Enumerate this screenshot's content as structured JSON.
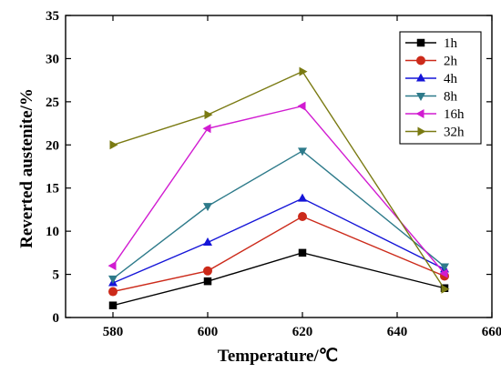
{
  "chart_data": {
    "type": "line",
    "xlabel": "Temperature/℃",
    "ylabel": "Reverted austenite/%",
    "xlim": [
      570,
      660
    ],
    "ylim": [
      0,
      35
    ],
    "xticks": [
      580,
      600,
      620,
      640,
      660
    ],
    "yticks": [
      0,
      5,
      10,
      15,
      20,
      25,
      30,
      35
    ],
    "legend_position": "top-right",
    "grid": false,
    "series": [
      {
        "name": "1h",
        "color": "#000000",
        "marker": "square",
        "x": [
          580,
          600,
          620,
          650
        ],
        "y": [
          1.4,
          4.2,
          7.5,
          3.4
        ]
      },
      {
        "name": "2h",
        "color": "#cc2a1a",
        "marker": "circle",
        "x": [
          580,
          600,
          620,
          650
        ],
        "y": [
          3.0,
          5.4,
          11.7,
          4.8
        ]
      },
      {
        "name": "4h",
        "color": "#1515d8",
        "marker": "triangle-up",
        "x": [
          580,
          600,
          620,
          650
        ],
        "y": [
          4.0,
          8.7,
          13.8,
          5.6
        ]
      },
      {
        "name": "8h",
        "color": "#2d7a8a",
        "marker": "triangle-down",
        "x": [
          580,
          600,
          620,
          650
        ],
        "y": [
          4.5,
          12.9,
          19.3,
          5.9
        ]
      },
      {
        "name": "16h",
        "color": "#d11bd1",
        "marker": "triangle-left",
        "x": [
          580,
          600,
          620,
          650
        ],
        "y": [
          6.0,
          21.9,
          24.5,
          5.1
        ]
      },
      {
        "name": "32h",
        "color": "#7a7a12",
        "marker": "triangle-right",
        "x": [
          580,
          600,
          620,
          650
        ],
        "y": [
          20.0,
          23.5,
          28.5,
          3.3
        ]
      }
    ]
  }
}
